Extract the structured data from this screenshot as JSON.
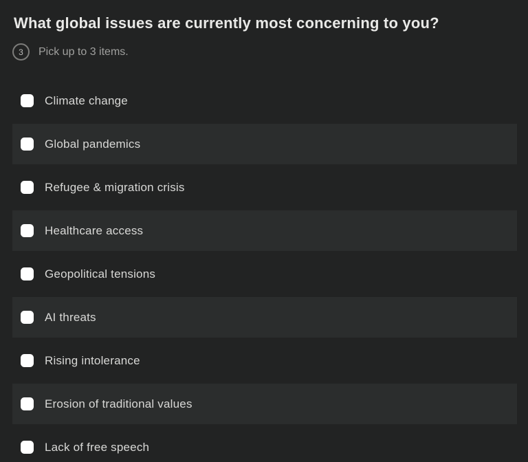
{
  "question": {
    "title": "What global issues are currently most concerning to you?",
    "badge_number": "3",
    "instruction": "Pick up to 3 items."
  },
  "options": [
    {
      "label": "Climate change",
      "checked": false
    },
    {
      "label": "Global pandemics",
      "checked": false
    },
    {
      "label": "Refugee & migration crisis",
      "checked": false
    },
    {
      "label": "Healthcare access",
      "checked": false
    },
    {
      "label": "Geopolitical tensions",
      "checked": false
    },
    {
      "label": "AI threats",
      "checked": false
    },
    {
      "label": "Rising intolerance",
      "checked": false
    },
    {
      "label": "Erosion of traditional values",
      "checked": false
    },
    {
      "label": "Lack of free speech",
      "checked": false
    }
  ],
  "colors": {
    "background": "#222323",
    "row_highlight": "#2b2d2d",
    "title_text": "#e9e9e7",
    "option_text": "#d8d8d6",
    "hint_text": "#a0a09e",
    "badge_border": "#7c7c7a",
    "checkbox_fill": "#ffffff"
  }
}
